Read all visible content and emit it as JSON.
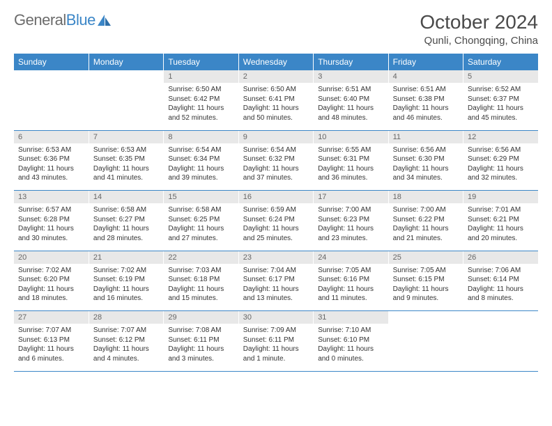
{
  "logo": {
    "text1": "General",
    "text2": "Blue",
    "iconColor": "#3b86c7"
  },
  "title": "October 2024",
  "location": "Qunli, Chongqing, China",
  "dayHeaders": [
    "Sunday",
    "Monday",
    "Tuesday",
    "Wednesday",
    "Thursday",
    "Friday",
    "Saturday"
  ],
  "weeks": [
    [
      null,
      null,
      {
        "n": "1",
        "sr": "6:50 AM",
        "ss": "6:42 PM",
        "dl": "11 hours and 52 minutes."
      },
      {
        "n": "2",
        "sr": "6:50 AM",
        "ss": "6:41 PM",
        "dl": "11 hours and 50 minutes."
      },
      {
        "n": "3",
        "sr": "6:51 AM",
        "ss": "6:40 PM",
        "dl": "11 hours and 48 minutes."
      },
      {
        "n": "4",
        "sr": "6:51 AM",
        "ss": "6:38 PM",
        "dl": "11 hours and 46 minutes."
      },
      {
        "n": "5",
        "sr": "6:52 AM",
        "ss": "6:37 PM",
        "dl": "11 hours and 45 minutes."
      }
    ],
    [
      {
        "n": "6",
        "sr": "6:53 AM",
        "ss": "6:36 PM",
        "dl": "11 hours and 43 minutes."
      },
      {
        "n": "7",
        "sr": "6:53 AM",
        "ss": "6:35 PM",
        "dl": "11 hours and 41 minutes."
      },
      {
        "n": "8",
        "sr": "6:54 AM",
        "ss": "6:34 PM",
        "dl": "11 hours and 39 minutes."
      },
      {
        "n": "9",
        "sr": "6:54 AM",
        "ss": "6:32 PM",
        "dl": "11 hours and 37 minutes."
      },
      {
        "n": "10",
        "sr": "6:55 AM",
        "ss": "6:31 PM",
        "dl": "11 hours and 36 minutes."
      },
      {
        "n": "11",
        "sr": "6:56 AM",
        "ss": "6:30 PM",
        "dl": "11 hours and 34 minutes."
      },
      {
        "n": "12",
        "sr": "6:56 AM",
        "ss": "6:29 PM",
        "dl": "11 hours and 32 minutes."
      }
    ],
    [
      {
        "n": "13",
        "sr": "6:57 AM",
        "ss": "6:28 PM",
        "dl": "11 hours and 30 minutes."
      },
      {
        "n": "14",
        "sr": "6:58 AM",
        "ss": "6:27 PM",
        "dl": "11 hours and 28 minutes."
      },
      {
        "n": "15",
        "sr": "6:58 AM",
        "ss": "6:25 PM",
        "dl": "11 hours and 27 minutes."
      },
      {
        "n": "16",
        "sr": "6:59 AM",
        "ss": "6:24 PM",
        "dl": "11 hours and 25 minutes."
      },
      {
        "n": "17",
        "sr": "7:00 AM",
        "ss": "6:23 PM",
        "dl": "11 hours and 23 minutes."
      },
      {
        "n": "18",
        "sr": "7:00 AM",
        "ss": "6:22 PM",
        "dl": "11 hours and 21 minutes."
      },
      {
        "n": "19",
        "sr": "7:01 AM",
        "ss": "6:21 PM",
        "dl": "11 hours and 20 minutes."
      }
    ],
    [
      {
        "n": "20",
        "sr": "7:02 AM",
        "ss": "6:20 PM",
        "dl": "11 hours and 18 minutes."
      },
      {
        "n": "21",
        "sr": "7:02 AM",
        "ss": "6:19 PM",
        "dl": "11 hours and 16 minutes."
      },
      {
        "n": "22",
        "sr": "7:03 AM",
        "ss": "6:18 PM",
        "dl": "11 hours and 15 minutes."
      },
      {
        "n": "23",
        "sr": "7:04 AM",
        "ss": "6:17 PM",
        "dl": "11 hours and 13 minutes."
      },
      {
        "n": "24",
        "sr": "7:05 AM",
        "ss": "6:16 PM",
        "dl": "11 hours and 11 minutes."
      },
      {
        "n": "25",
        "sr": "7:05 AM",
        "ss": "6:15 PM",
        "dl": "11 hours and 9 minutes."
      },
      {
        "n": "26",
        "sr": "7:06 AM",
        "ss": "6:14 PM",
        "dl": "11 hours and 8 minutes."
      }
    ],
    [
      {
        "n": "27",
        "sr": "7:07 AM",
        "ss": "6:13 PM",
        "dl": "11 hours and 6 minutes."
      },
      {
        "n": "28",
        "sr": "7:07 AM",
        "ss": "6:12 PM",
        "dl": "11 hours and 4 minutes."
      },
      {
        "n": "29",
        "sr": "7:08 AM",
        "ss": "6:11 PM",
        "dl": "11 hours and 3 minutes."
      },
      {
        "n": "30",
        "sr": "7:09 AM",
        "ss": "6:11 PM",
        "dl": "11 hours and 1 minute."
      },
      {
        "n": "31",
        "sr": "7:10 AM",
        "ss": "6:10 PM",
        "dl": "11 hours and 0 minutes."
      },
      null,
      null
    ]
  ],
  "labels": {
    "sunrise": "Sunrise:",
    "sunset": "Sunset:",
    "daylight": "Daylight:"
  },
  "colors": {
    "headerBg": "#3b86c7",
    "dayNumBg": "#e8e8e8",
    "border": "#3b86c7"
  }
}
